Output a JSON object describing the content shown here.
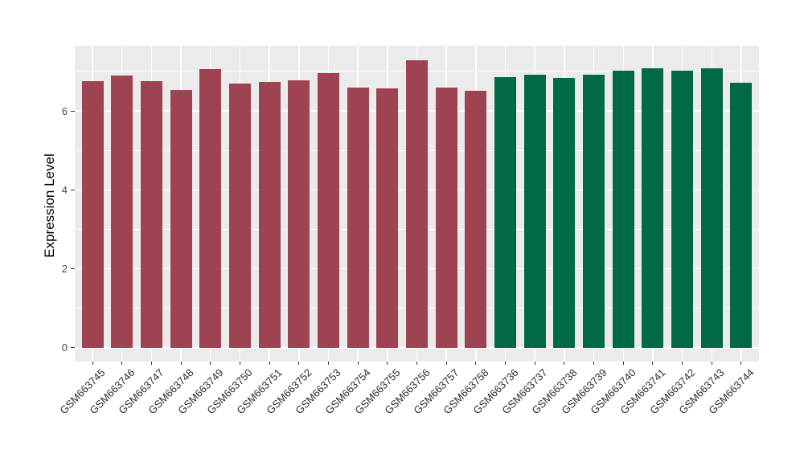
{
  "chart_data": {
    "type": "bar",
    "title": "",
    "xlabel": "",
    "ylabel": "Expression Level",
    "ylim": [
      -0.35,
      7.65
    ],
    "yticks": [
      0,
      2,
      4,
      6
    ],
    "yticks_minor": [
      1,
      3,
      5,
      7
    ],
    "grid": true,
    "legend": "none",
    "panel_background": "#EBEBEB",
    "gridline_color": "#FFFFFF",
    "categories": [
      "GSM663745",
      "GSM663746",
      "GSM663747",
      "GSM663748",
      "GSM663749",
      "GSM663750",
      "GSM663751",
      "GSM663752",
      "GSM663753",
      "GSM663754",
      "GSM663755",
      "GSM663756",
      "GSM663757",
      "GSM663758",
      "GSM663736",
      "GSM663737",
      "GSM663738",
      "GSM663739",
      "GSM663740",
      "GSM663741",
      "GSM663742",
      "GSM663743",
      "GSM663744"
    ],
    "values": [
      6.75,
      6.9,
      6.75,
      6.53,
      7.05,
      6.69,
      6.73,
      6.78,
      6.96,
      6.6,
      6.57,
      7.29,
      6.6,
      6.51,
      6.86,
      6.91,
      6.83,
      6.92,
      7.01,
      7.08,
      7.01,
      7.09,
      6.71
    ],
    "groups": [
      "A",
      "A",
      "A",
      "A",
      "A",
      "A",
      "A",
      "A",
      "A",
      "A",
      "A",
      "A",
      "A",
      "A",
      "B",
      "B",
      "B",
      "B",
      "B",
      "B",
      "B",
      "B",
      "B"
    ],
    "group_colors": {
      "A": "#9E4352",
      "B": "#006948"
    }
  }
}
